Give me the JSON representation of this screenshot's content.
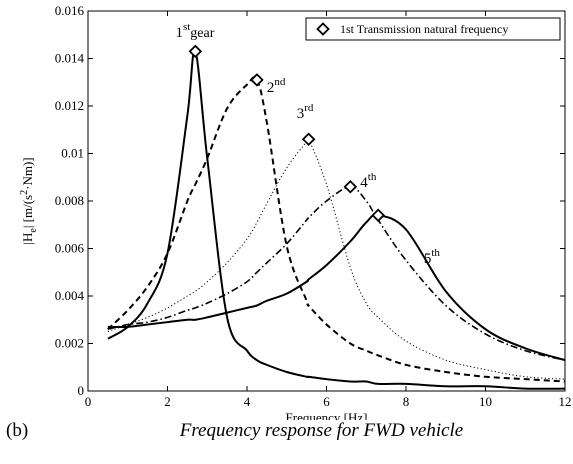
{
  "caption": {
    "label": "(b)",
    "title": "Frequency response for FWD vehicle"
  },
  "chart_data": {
    "type": "line",
    "title": "",
    "xlabel": "Frequency [Hz]",
    "ylabel_main": "|H",
    "ylabel_sub": "e",
    "ylabel_rest": "|  [m/(s",
    "ylabel_sup": "2",
    "ylabel_tail": "·Nm)]",
    "xlim": [
      0,
      12
    ],
    "ylim": [
      0,
      0.016
    ],
    "x_ticks": [
      "0",
      "2",
      "4",
      "6",
      "8",
      "10",
      "12"
    ],
    "y_ticks": [
      "0",
      "0.002",
      "0.004",
      "0.006",
      "0.008",
      "0.01",
      "0.012",
      "0.014",
      "0.016"
    ],
    "grid": false,
    "legend": {
      "position": "top-right",
      "entries": [
        "1st Transmission natural frequency"
      ]
    },
    "series": [
      {
        "label": "1st gear",
        "line_style": "solid",
        "f_natural": 2.7,
        "peak": 0.0143
      },
      {
        "label": "2nd",
        "line_style": "dashed",
        "f_natural": 4.25,
        "peak": 0.0131
      },
      {
        "label": "3rd",
        "line_style": "dotted",
        "f_natural": 5.55,
        "peak": 0.0106
      },
      {
        "label": "4th",
        "line_style": "dashdot",
        "f_natural": 6.6,
        "peak": 0.0086
      },
      {
        "label": "5th",
        "line_style": "solid",
        "f_natural": 7.3,
        "peak": 0.0074
      }
    ],
    "curve_samples": {
      "x": [
        0.5,
        1,
        1.5,
        2,
        2.5,
        2.7,
        3,
        3.5,
        4,
        4.25,
        4.5,
        5,
        5.5,
        5.55,
        6,
        6.6,
        7,
        7.3,
        8,
        9,
        10,
        11,
        12
      ],
      "1st gear": [
        0.0022,
        0.0027,
        0.0037,
        0.0058,
        0.0116,
        0.0143,
        0.0098,
        0.0031,
        0.0017,
        0.0013,
        0.0011,
        0.0008,
        0.0006,
        0.0006,
        0.0005,
        0.0004,
        0.0004,
        0.0003,
        0.0003,
        0.0002,
        0.0002,
        0.0001,
        0.0001
      ],
      "2nd": [
        0.0026,
        0.0034,
        0.0044,
        0.0058,
        0.008,
        0.0087,
        0.0098,
        0.0119,
        0.0129,
        0.0131,
        0.0113,
        0.0061,
        0.0038,
        0.0036,
        0.0028,
        0.002,
        0.0017,
        0.0015,
        0.0011,
        0.0008,
        0.0006,
        0.0005,
        0.0004
      ],
      "3rd": [
        0.0025,
        0.0028,
        0.0031,
        0.0035,
        0.004,
        0.0042,
        0.0046,
        0.0054,
        0.0064,
        0.0071,
        0.0079,
        0.0094,
        0.0105,
        0.0106,
        0.0087,
        0.0052,
        0.0037,
        0.0031,
        0.0021,
        0.0013,
        0.0009,
        0.0006,
        0.0005
      ],
      "4th": [
        0.0026,
        0.0028,
        0.0029,
        0.0031,
        0.0034,
        0.0035,
        0.0037,
        0.0041,
        0.0046,
        0.005,
        0.0054,
        0.0062,
        0.0072,
        0.0073,
        0.008,
        0.0086,
        0.008,
        0.0072,
        0.0055,
        0.0036,
        0.0024,
        0.0017,
        0.0013
      ],
      "5th": [
        0.0027,
        0.0027,
        0.0028,
        0.0029,
        0.003,
        0.003,
        0.0031,
        0.0033,
        0.0035,
        0.0036,
        0.0038,
        0.0041,
        0.0046,
        0.0047,
        0.0053,
        0.0063,
        0.0071,
        0.0074,
        0.0068,
        0.0042,
        0.0026,
        0.0018,
        0.0013
      ]
    },
    "annotations": [
      {
        "text": "1",
        "sup": "st",
        "after": "gear",
        "x": 2.2,
        "y": 0.0149
      },
      {
        "text": "2",
        "sup": "nd",
        "after": "",
        "x": 4.5,
        "y": 0.0126
      },
      {
        "text": "3",
        "sup": "rd",
        "after": "",
        "x": 5.25,
        "y": 0.0115
      },
      {
        "text": "4",
        "sup": "th",
        "after": "",
        "x": 6.85,
        "y": 0.0086
      },
      {
        "text": "5",
        "sup": "th",
        "after": "",
        "x": 8.45,
        "y": 0.0054
      }
    ]
  }
}
